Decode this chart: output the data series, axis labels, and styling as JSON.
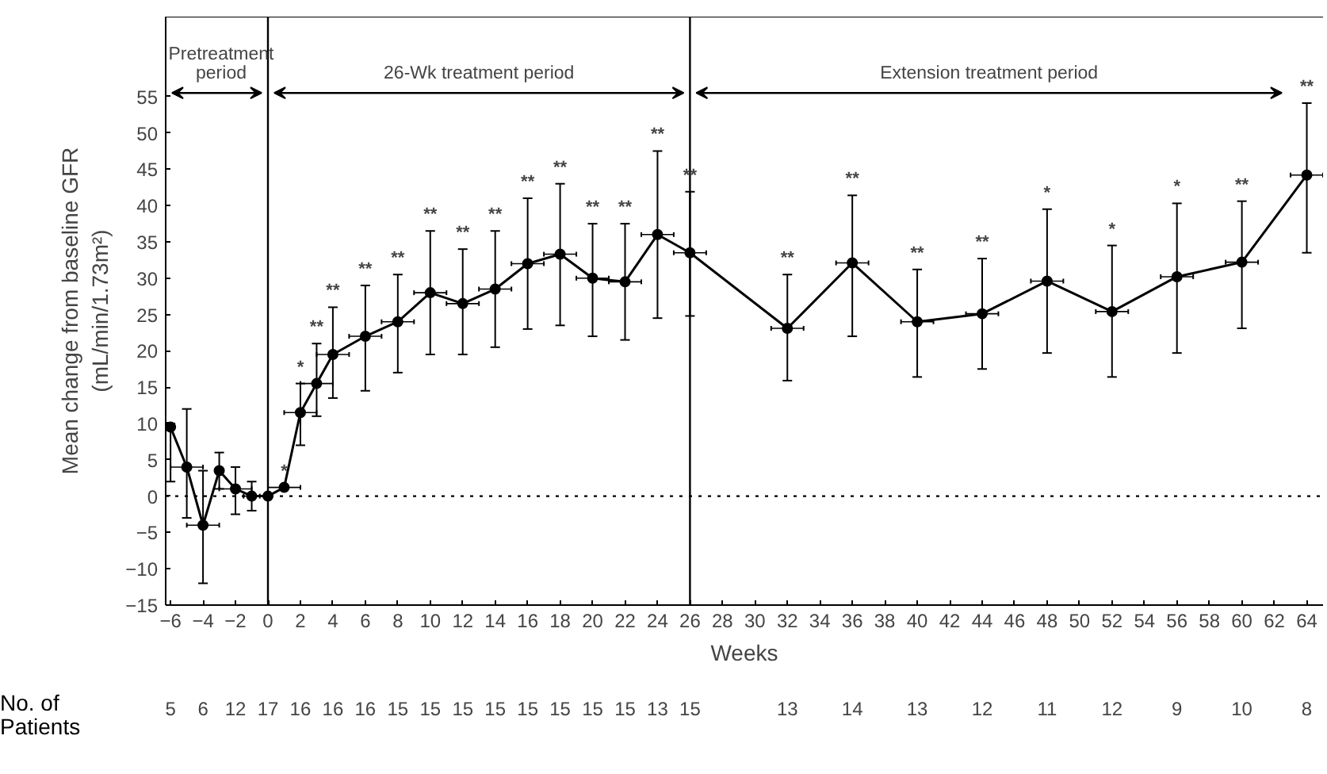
{
  "chart_data": {
    "type": "line",
    "xlabel": "Weeks",
    "ylabel": "Mean change from baseline GFR\n(mL/min/1.73m²)",
    "x": [
      -6,
      -5,
      -4,
      -3,
      -2,
      -1,
      0,
      1,
      2,
      3,
      4,
      6,
      8,
      10,
      12,
      14,
      16,
      18,
      20,
      22,
      24,
      26,
      32,
      36,
      40,
      44,
      48,
      52,
      56,
      60,
      64
    ],
    "series": [
      {
        "color": "#000000",
        "values": [
          9.5,
          4,
          -4,
          3.5,
          1,
          0,
          0,
          1.2,
          11.5,
          15.5,
          19.5,
          22,
          24,
          28,
          26.5,
          28.5,
          32,
          33.3,
          30,
          29.5,
          36,
          33.5,
          23.1,
          32.1,
          24,
          25.1,
          29.6,
          25.4,
          30.2,
          32.2,
          44.2
        ],
        "errors": [
          [
            2,
            10
          ],
          [
            -3,
            12
          ],
          [
            -12,
            3.5
          ],
          [
            1,
            6
          ],
          [
            -2.5,
            4
          ],
          [
            -2,
            2
          ],
          null,
          null,
          [
            7,
            15.5
          ],
          [
            11,
            21
          ],
          [
            13.5,
            26
          ],
          [
            14.5,
            29
          ],
          [
            17,
            30.5
          ],
          [
            19.5,
            36.5
          ],
          [
            19.5,
            34
          ],
          [
            20.5,
            36.5
          ],
          [
            23,
            41
          ],
          [
            23.5,
            43
          ],
          [
            22,
            37.5
          ],
          [
            21.5,
            37.5
          ],
          [
            24.5,
            47.5
          ],
          [
            24.8,
            41.9
          ],
          [
            15.9,
            30.5
          ],
          [
            22,
            41.4
          ],
          [
            16.4,
            31.2
          ],
          [
            17.5,
            32.7
          ],
          [
            19.7,
            39.5
          ],
          [
            16.4,
            34.5
          ],
          [
            19.7,
            40.3
          ],
          [
            23.1,
            40.6
          ],
          [
            33.5,
            54.1
          ]
        ],
        "xerrors": [
          null,
          1,
          1,
          null,
          1,
          0.5,
          null,
          1,
          1,
          1,
          1,
          1,
          1,
          1,
          1,
          1,
          1,
          1,
          1,
          1,
          1,
          1,
          1,
          1,
          1,
          1,
          1,
          1,
          1,
          1,
          1
        ]
      }
    ],
    "xlim": [
      -6.3,
      65
    ],
    "ylim": [
      -15,
      66
    ],
    "xticks": [
      {
        "value": -6,
        "label": "−6"
      },
      {
        "value": -4,
        "label": "−4"
      },
      {
        "value": -2,
        "label": "−2"
      },
      0,
      2,
      4,
      6,
      8,
      10,
      12,
      14,
      16,
      18,
      20,
      22,
      24,
      26,
      28,
      30,
      32,
      34,
      36,
      38,
      40,
      42,
      44,
      46,
      48,
      50,
      52,
      54,
      56,
      58,
      60,
      62,
      64
    ],
    "yticks": [
      {
        "value": -15,
        "label": "−15"
      },
      {
        "value": -10,
        "label": "−10"
      },
      {
        "value": -5,
        "label": "−5"
      },
      0,
      5,
      10,
      15,
      20,
      25,
      30,
      35,
      40,
      45,
      50,
      55
    ],
    "marker": "circle",
    "line_style": "solid",
    "grid": false,
    "ref_lines": [
      {
        "axis": "x",
        "value": 0,
        "color": "#000000",
        "line_style": "solid"
      },
      {
        "axis": "x",
        "value": 26,
        "color": "#000000",
        "line_style": "solid"
      },
      {
        "axis": "y",
        "value": 0,
        "color": "#000000",
        "line_style": "dotted"
      }
    ],
    "annotations": [
      "Pretreatment\nperiod",
      "26-Wk treatment period",
      "Extension treatment period",
      {
        "text": "*",
        "x": 1,
        "y": 1.2
      },
      {
        "text": "*",
        "x": 2,
        "y": 15.5
      },
      {
        "text": "**",
        "x": 3,
        "y": 21
      },
      {
        "text": "**",
        "x": 4,
        "y": 26
      },
      {
        "text": "**",
        "x": 6,
        "y": 29
      },
      {
        "text": "**",
        "x": 8,
        "y": 30.5
      },
      {
        "text": "**",
        "x": 10,
        "y": 36.5
      },
      {
        "text": "**",
        "x": 12,
        "y": 34
      },
      {
        "text": "**",
        "x": 14,
        "y": 36.5
      },
      {
        "text": "**",
        "x": 16,
        "y": 41
      },
      {
        "text": "**",
        "x": 18,
        "y": 43
      },
      {
        "text": "**",
        "x": 20,
        "y": 37.5
      },
      {
        "text": "**",
        "x": 22,
        "y": 37.5
      },
      {
        "text": "**",
        "x": 24,
        "y": 47.5
      },
      {
        "text": "**",
        "x": 26,
        "y": 41.9
      },
      {
        "text": "**",
        "x": 32,
        "y": 30.5
      },
      {
        "text": "**",
        "x": 36,
        "y": 41.4
      },
      {
        "text": "**",
        "x": 40,
        "y": 31.2
      },
      {
        "text": "**",
        "x": 44,
        "y": 32.7
      },
      {
        "text": "*",
        "x": 48,
        "y": 39.5
      },
      {
        "text": "*",
        "x": 52,
        "y": 34.5
      },
      {
        "text": "*",
        "x": 56,
        "y": 40.3
      },
      {
        "text": "**",
        "x": 60,
        "y": 40.6
      },
      {
        "text": "**",
        "x": 64,
        "y": 54.1
      },
      "No. of\nPatients",
      "5",
      "6",
      "12",
      "17",
      "16",
      "16",
      "16",
      "15",
      "15",
      "15",
      "15",
      "15",
      "15",
      "15",
      "15",
      "13",
      "15",
      "13",
      "14",
      "13",
      "12",
      "11",
      "12",
      "9",
      "10",
      "8"
    ]
  }
}
